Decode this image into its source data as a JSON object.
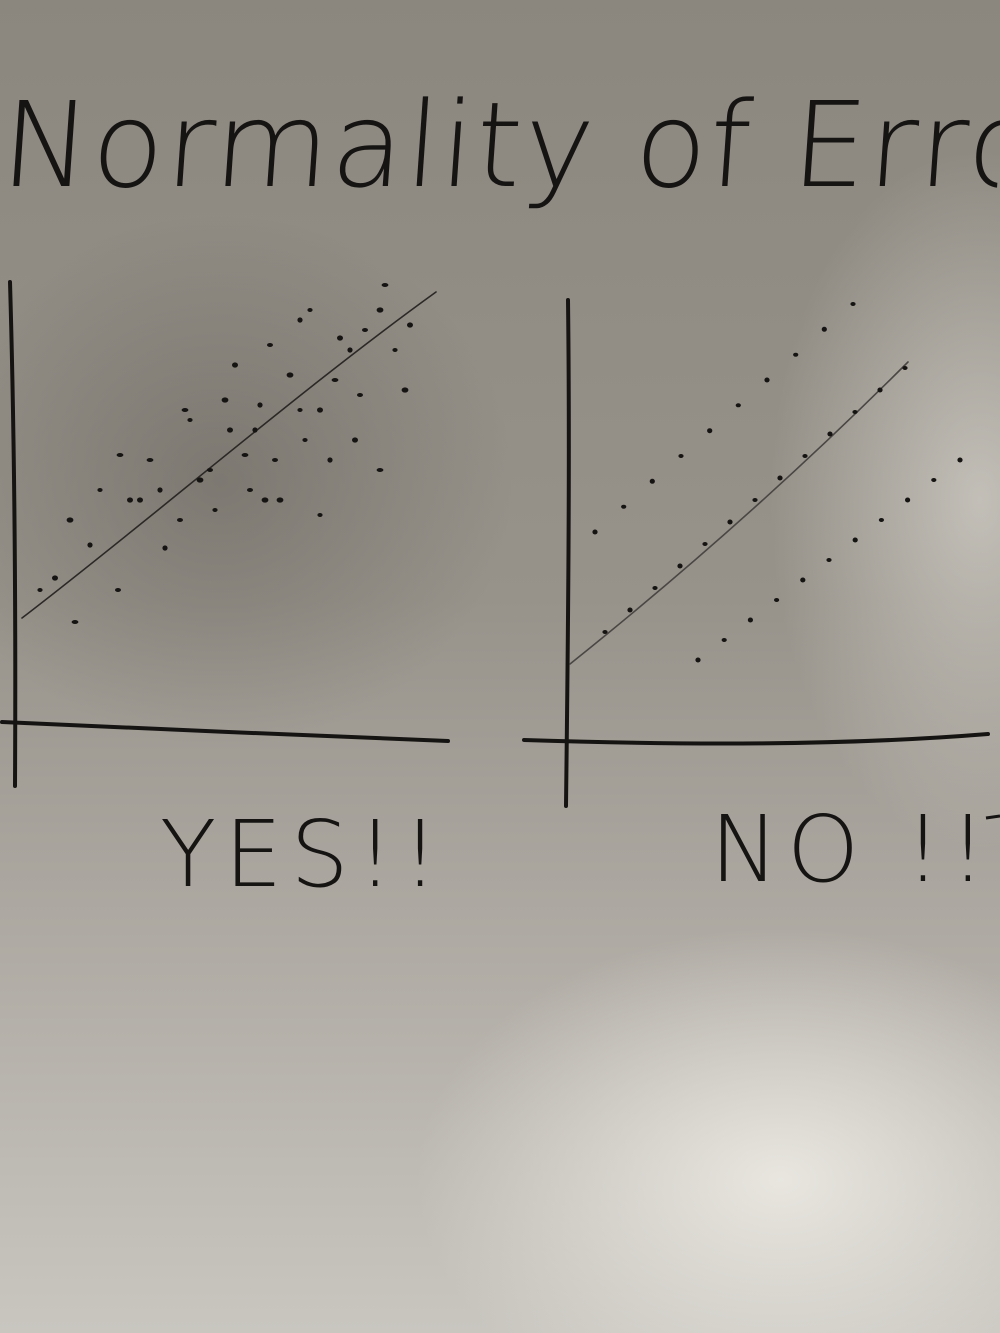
{
  "board": {
    "title": "Normality of Error Distributio",
    "panels": [
      {
        "label": "YES!!"
      },
      {
        "label": "NO !!"
      }
    ],
    "colors": {
      "marker": "#161413",
      "board": "#8e8a83"
    }
  }
}
